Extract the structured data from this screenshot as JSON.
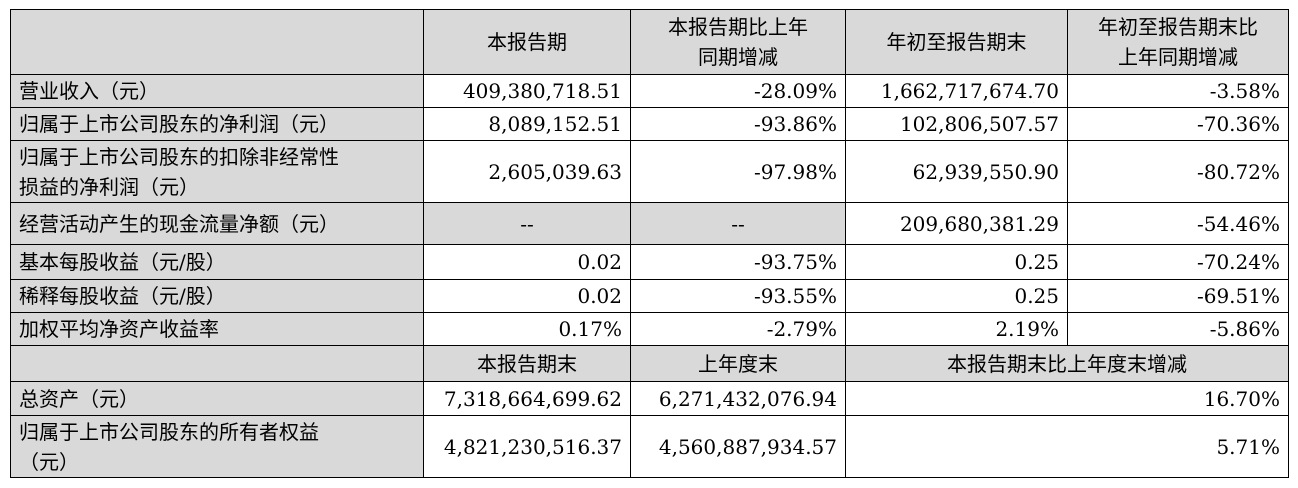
{
  "header": {
    "col1": "本报告期",
    "col2a": "本报告期比上年",
    "col2b": "同期增减",
    "col3": "年初至报告期末",
    "col4a": "年初至报告期末比",
    "col4b": "上年同期增减"
  },
  "rows": [
    {
      "label": "营业收入（元）",
      "v1": "409,380,718.51",
      "v2": "-28.09%",
      "v3": "1,662,717,674.70",
      "v4": "-3.58%"
    },
    {
      "label": "归属于上市公司股东的净利润（元）",
      "v1": "8,089,152.51",
      "v2": "-93.86%",
      "v3": "102,806,507.57",
      "v4": "-70.36%"
    },
    {
      "label_a": "归属于上市公司股东的扣除非经常性",
      "label_b": "损益的净利润（元）",
      "v1": "2,605,039.63",
      "v2": "-97.98%",
      "v3": "62,939,550.90",
      "v4": "-80.72%"
    },
    {
      "label": "经营活动产生的现金流量净额（元）",
      "v1": "--",
      "v2": "--",
      "v3": "209,680,381.29",
      "v4": "-54.46%"
    },
    {
      "label": "基本每股收益（元/股）",
      "v1": "0.02",
      "v2": "-93.75%",
      "v3": "0.25",
      "v4": "-70.24%"
    },
    {
      "label": "稀释每股收益（元/股）",
      "v1": "0.02",
      "v2": "-93.55%",
      "v3": "0.25",
      "v4": "-69.51%"
    },
    {
      "label": "加权平均净资产收益率",
      "v1": "0.17%",
      "v2": "-2.79%",
      "v3": "2.19%",
      "v4": "-5.86%"
    }
  ],
  "header2": {
    "col1": "本报告期末",
    "col2": "上年度末",
    "col3": "本报告期末比上年度末增减"
  },
  "rows2": [
    {
      "label": "总资产（元）",
      "v1": "7,318,664,699.62",
      "v2": "6,271,432,076.94",
      "v3": "16.70%"
    },
    {
      "label_a": "归属于上市公司股东的所有者权益",
      "label_b": "（元）",
      "v1": "4,821,230,516.37",
      "v2": "4,560,887,934.57",
      "v3": "5.71%"
    }
  ]
}
